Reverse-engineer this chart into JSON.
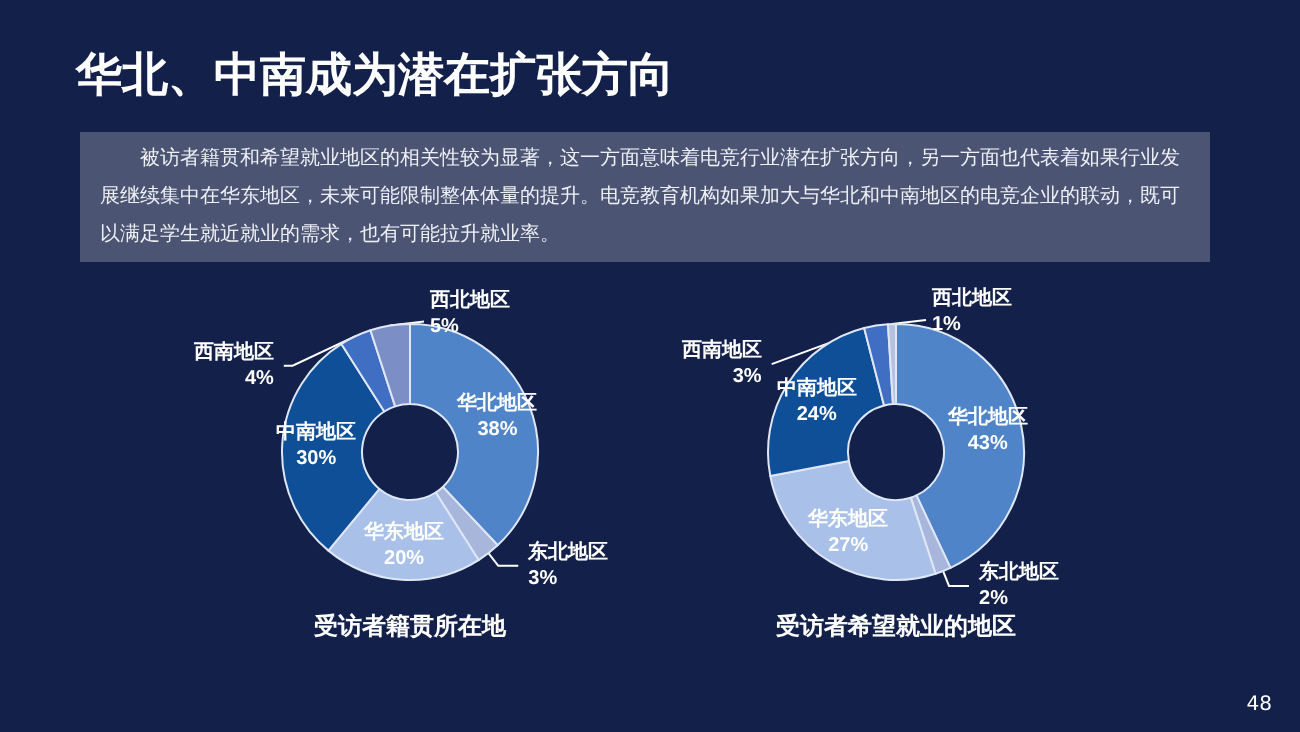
{
  "chart_data": [
    {
      "type": "other",
      "title": "华北、中南成为潜在扩张方向",
      "annotations": [
        "被访者籍贯和希望就业地区的相关性较为显著，这一方面意味着电竞行业潜在扩张方向，另一方面也代表着如果行业发展继续集中在华东地区，未来可能限制整体体量的提升。电竞教育机构如果加大与华北和中南地区的电竞企业的联动，既可以满足学生就近就业的需求，也有可能拉升就业率。",
        "48"
      ]
    },
    {
      "type": "donut",
      "title": "受访者籍贯所在地",
      "categories": [
        "华北地区",
        "东北地区",
        "华东地区",
        "中南地区",
        "西南地区",
        "西北地区"
      ],
      "values": [
        38,
        3,
        20,
        30,
        4,
        5
      ],
      "value_labels": [
        "38%",
        "3%",
        "20%",
        "30%",
        "4%",
        "5%"
      ],
      "colors": [
        "#4f84c8",
        "#a7b6da",
        "#a9c1e8",
        "#0e4f98",
        "#3f6ec2",
        "#7b8fc6"
      ]
    },
    {
      "type": "donut",
      "title": "受访者希望就业的地区",
      "categories": [
        "华北地区",
        "东北地区",
        "华东地区",
        "中南地区",
        "西南地区",
        "西北地区"
      ],
      "values": [
        43,
        2,
        27,
        24,
        3,
        1
      ],
      "value_labels": [
        "43%",
        "2%",
        "27%",
        "24%",
        "3%",
        "1%"
      ],
      "colors": [
        "#4f84c8",
        "#a7b6da",
        "#a9c1e8",
        "#0e4f98",
        "#3f6ec2",
        "#b5c2dd"
      ]
    }
  ]
}
